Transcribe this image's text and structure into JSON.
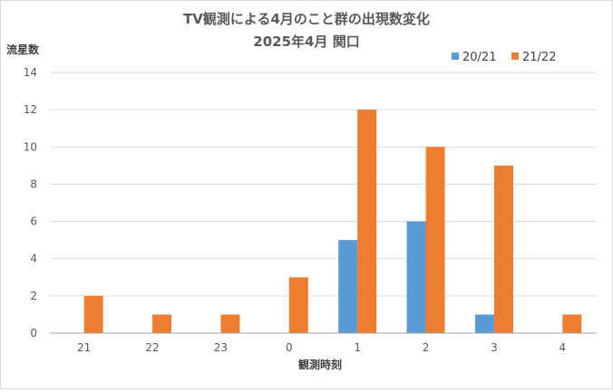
{
  "chart_data": {
    "type": "bar",
    "title": "TV観測による4月のこと群の出現数変化",
    "subtitle": "2025年4月 関口",
    "xlabel": "観測時刻",
    "ylabel": "流星数",
    "categories": [
      "21",
      "22",
      "23",
      "0",
      "1",
      "2",
      "3",
      "4"
    ],
    "ylim": [
      0,
      14
    ],
    "yticks": [
      0,
      2,
      4,
      6,
      8,
      10,
      12,
      14
    ],
    "grid": true,
    "legend_position": "top-right",
    "series": [
      {
        "name": "20/21",
        "color": "#5b9bd5",
        "values": [
          0,
          0,
          0,
          0,
          5,
          6,
          1,
          0
        ]
      },
      {
        "name": "21/22",
        "color": "#ed7d31",
        "values": [
          2,
          1,
          1,
          3,
          12,
          10,
          9,
          1
        ]
      }
    ]
  }
}
